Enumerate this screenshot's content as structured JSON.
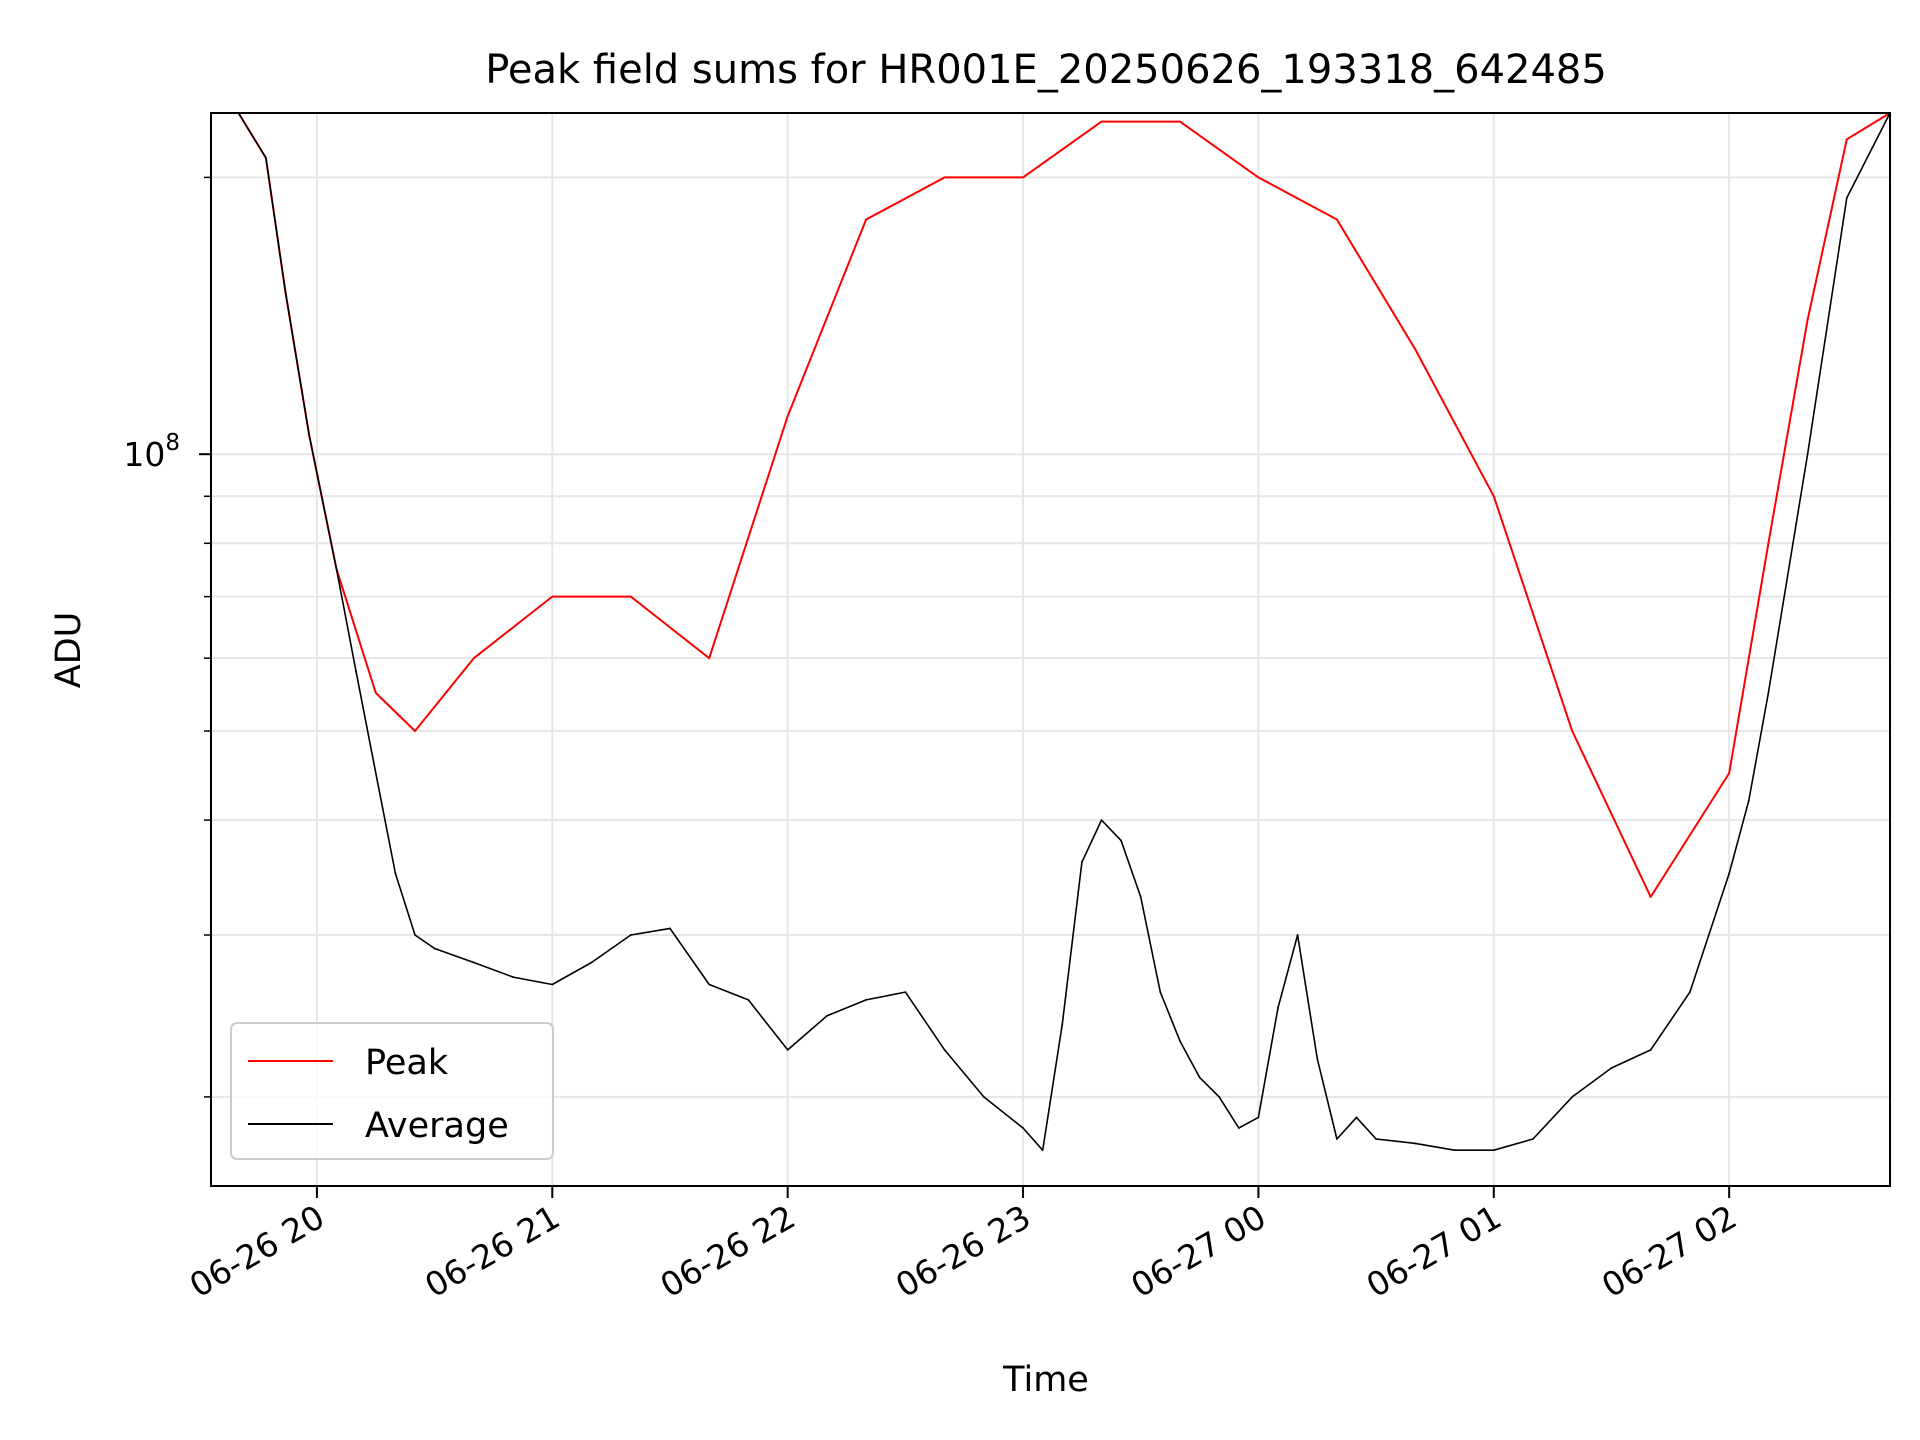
{
  "chart_data": {
    "type": "line",
    "title": "Peak field sums for HR001E_20250626_193318_642485",
    "xlabel": "Time",
    "ylabel": "ADU",
    "x_scale": "time",
    "y_scale": "log",
    "xlim": [
      "2025-06-26 19:33",
      "2025-06-27 02:41"
    ],
    "ylim": [
      16000000,
      235000000
    ],
    "x_tick_labels": [
      "06-26 20",
      "06-26 21",
      "06-26 22",
      "06-26 23",
      "06-27 00",
      "06-27 01",
      "06-27 02"
    ],
    "x_tick_times": [
      "2025-06-26 20:00",
      "2025-06-26 21:00",
      "2025-06-26 22:00",
      "2025-06-26 23:00",
      "2025-06-27 00:00",
      "2025-06-27 01:00",
      "2025-06-27 02:00"
    ],
    "y_major_ticks": [
      {
        "value": 100000000,
        "base": "10",
        "exp": "8"
      }
    ],
    "y_minor_ticks": [
      20000000,
      30000000,
      40000000,
      50000000,
      60000000,
      70000000,
      80000000,
      90000000,
      200000000
    ],
    "grid": true,
    "legend": {
      "position": "lower-left",
      "entries": [
        "Peak",
        "Average"
      ]
    },
    "series": [
      {
        "name": "Peak",
        "color": "#ff0000",
        "x": [
          "2025-06-26 19:33",
          "2025-06-26 19:40",
          "2025-06-26 19:47",
          "2025-06-26 19:52",
          "2025-06-26 19:58",
          "2025-06-26 20:05",
          "2025-06-26 20:15",
          "2025-06-26 20:25",
          "2025-06-26 20:40",
          "2025-06-26 21:00",
          "2025-06-26 21:20",
          "2025-06-26 21:40",
          "2025-06-26 22:00",
          "2025-06-26 22:20",
          "2025-06-26 22:40",
          "2025-06-26 23:00",
          "2025-06-26 23:20",
          "2025-06-26 23:40",
          "2025-06-27 00:00",
          "2025-06-27 00:20",
          "2025-06-27 00:40",
          "2025-06-27 01:00",
          "2025-06-27 01:20",
          "2025-06-27 01:40",
          "2025-06-27 02:00",
          "2025-06-27 02:10",
          "2025-06-27 02:20",
          "2025-06-27 02:30",
          "2025-06-27 02:41"
        ],
        "y": [
          235000000,
          235000000,
          210000000,
          150000000,
          105000000,
          75000000,
          55000000,
          50000000,
          60000000,
          70000000,
          70000000,
          60000000,
          110000000,
          180000000,
          200000000,
          200000000,
          230000000,
          230000000,
          200000000,
          180000000,
          130000000,
          90000000,
          50000000,
          33000000,
          45000000,
          80000000,
          140000000,
          220000000,
          235000000
        ]
      },
      {
        "name": "Average",
        "color": "#000000",
        "x": [
          "2025-06-26 19:33",
          "2025-06-26 19:40",
          "2025-06-26 19:47",
          "2025-06-26 19:52",
          "2025-06-26 19:58",
          "2025-06-26 20:05",
          "2025-06-26 20:10",
          "2025-06-26 20:15",
          "2025-06-26 20:20",
          "2025-06-26 20:25",
          "2025-06-26 20:30",
          "2025-06-26 20:40",
          "2025-06-26 20:50",
          "2025-06-26 21:00",
          "2025-06-26 21:10",
          "2025-06-26 21:20",
          "2025-06-26 21:30",
          "2025-06-26 21:40",
          "2025-06-26 21:50",
          "2025-06-26 22:00",
          "2025-06-26 22:10",
          "2025-06-26 22:20",
          "2025-06-26 22:30",
          "2025-06-26 22:40",
          "2025-06-26 22:50",
          "2025-06-26 23:00",
          "2025-06-26 23:05",
          "2025-06-26 23:10",
          "2025-06-26 23:15",
          "2025-06-26 23:20",
          "2025-06-26 23:25",
          "2025-06-26 23:30",
          "2025-06-26 23:35",
          "2025-06-26 23:40",
          "2025-06-26 23:45",
          "2025-06-26 23:50",
          "2025-06-26 23:55",
          "2025-06-27 00:00",
          "2025-06-27 00:05",
          "2025-06-27 00:10",
          "2025-06-27 00:15",
          "2025-06-27 00:20",
          "2025-06-27 00:25",
          "2025-06-27 00:30",
          "2025-06-27 00:40",
          "2025-06-27 00:50",
          "2025-06-27 01:00",
          "2025-06-27 01:10",
          "2025-06-27 01:20",
          "2025-06-27 01:30",
          "2025-06-27 01:40",
          "2025-06-27 01:50",
          "2025-06-27 02:00",
          "2025-06-27 02:05",
          "2025-06-27 02:10",
          "2025-06-27 02:20",
          "2025-06-27 02:30",
          "2025-06-27 02:41"
        ],
        "y": [
          235000000,
          235000000,
          210000000,
          150000000,
          105000000,
          75000000,
          58000000,
          45000000,
          35000000,
          30000000,
          29000000,
          28000000,
          27000000,
          26500000,
          28000000,
          30000000,
          30500000,
          26500000,
          25500000,
          22500000,
          24500000,
          25500000,
          26000000,
          22500000,
          20000000,
          18500000,
          17500000,
          24000000,
          36000000,
          40000000,
          38000000,
          33000000,
          26000000,
          23000000,
          21000000,
          20000000,
          18500000,
          19000000,
          25000000,
          30000000,
          22000000,
          18000000,
          19000000,
          18000000,
          17800000,
          17500000,
          17500000,
          18000000,
          20000000,
          21500000,
          22500000,
          26000000,
          35000000,
          42000000,
          55000000,
          100000000,
          190000000,
          235000000
        ]
      }
    ]
  }
}
